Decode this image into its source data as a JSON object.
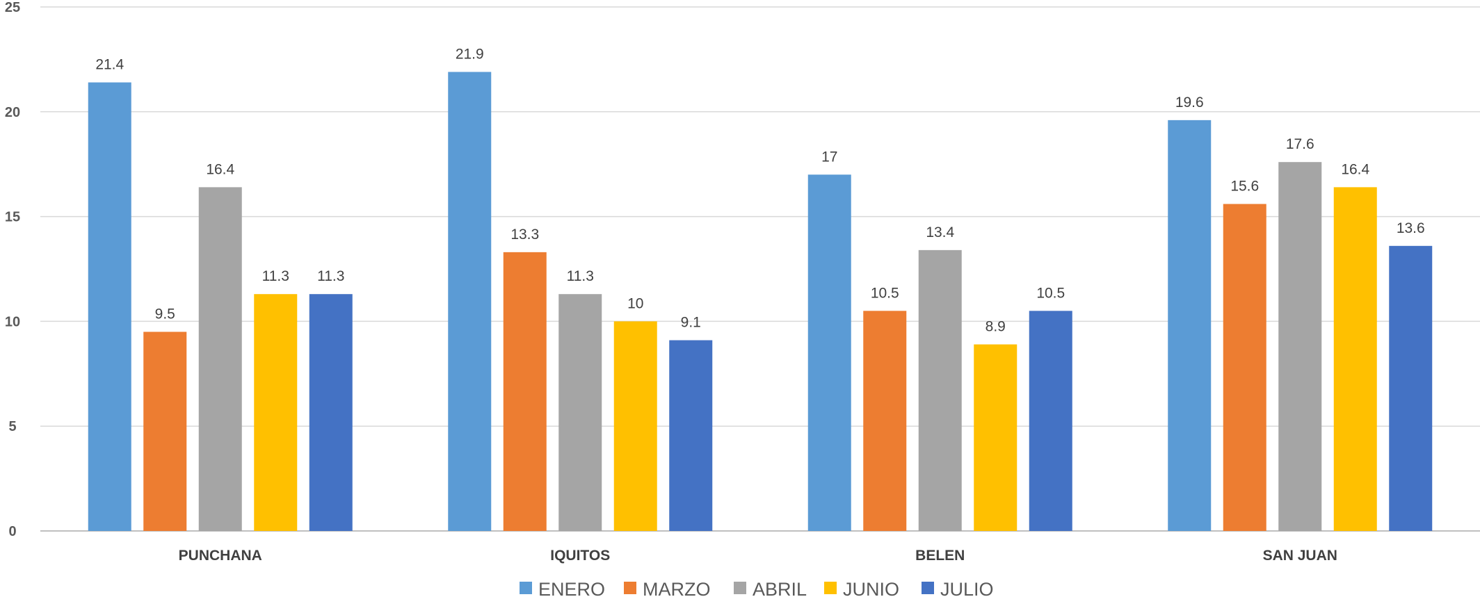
{
  "chart_data": {
    "type": "bar",
    "title": "",
    "xlabel": "",
    "ylabel": "",
    "categories": [
      "PUNCHANA",
      "IQUITOS",
      "BELEN",
      "SAN JUAN"
    ],
    "ylim": [
      0,
      25
    ],
    "yticks": [
      0,
      5,
      10,
      15,
      20,
      25
    ],
    "grid": true,
    "legend_position": "bottom",
    "series": [
      {
        "name": "ENERO",
        "color": "#5B9BD5",
        "values": [
          21.4,
          21.9,
          17,
          19.6
        ]
      },
      {
        "name": "MARZO",
        "color": "#ED7D31",
        "values": [
          9.5,
          13.3,
          10.5,
          15.6
        ]
      },
      {
        "name": "ABRIL",
        "color": "#A5A5A5",
        "values": [
          16.4,
          11.3,
          13.4,
          17.6
        ]
      },
      {
        "name": "JUNIO",
        "color": "#FFC000",
        "values": [
          11.3,
          10,
          8.9,
          16.4
        ]
      },
      {
        "name": "JULIO",
        "color": "#4472C4",
        "values": [
          11.3,
          9.1,
          10.5,
          13.6
        ]
      }
    ]
  }
}
